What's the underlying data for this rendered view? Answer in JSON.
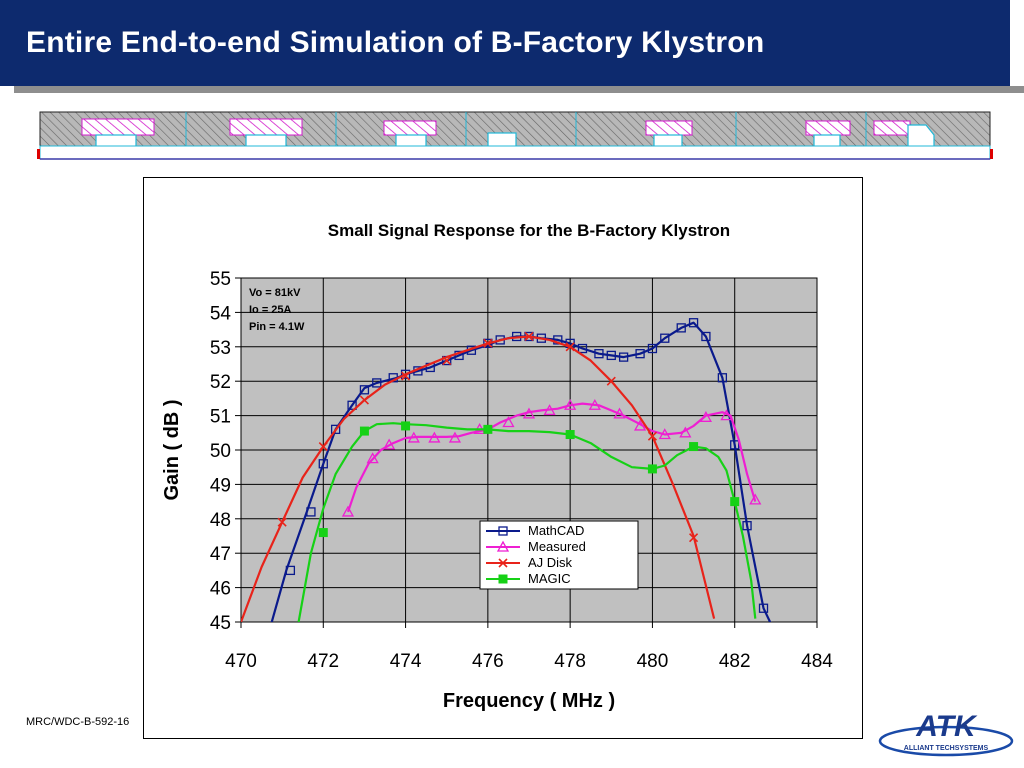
{
  "slide": {
    "title": "Entire End-to-end Simulation of B-Factory Klystron",
    "footer": "MRC/WDC-B-592-16",
    "logo_text": "ATK",
    "logo_subtext": "ALLIANT TECHSYSTEMS",
    "colors": {
      "title_bar": "#0d2a6e",
      "plot_bg": "#c0c0c0"
    }
  },
  "chart_data": {
    "type": "line",
    "title": "Small Signal Response for the B-Factory Klystron",
    "xlabel": "Frequency ( MHz )",
    "ylabel": "Gain ( dB )",
    "xlim": [
      470,
      484
    ],
    "ylim": [
      45,
      55
    ],
    "xticks": [
      470,
      472,
      474,
      476,
      478,
      480,
      482,
      484
    ],
    "yticks": [
      45,
      46,
      47,
      48,
      49,
      50,
      51,
      52,
      53,
      54,
      55
    ],
    "grid": true,
    "legend_position": "lower-center",
    "annotations": [
      "Vo  = 81kV",
      "Io    = 25A",
      "Pin = 4.1W"
    ],
    "series": [
      {
        "name": "MathCAD",
        "color": "#0a1a8c",
        "marker": "square",
        "x": [
          470.7,
          471.1,
          471.6,
          472.0,
          472.3,
          472.7,
          473.0,
          473.3,
          473.8,
          474.0,
          474.3,
          474.6,
          475.0,
          475.3,
          475.6,
          476.0,
          476.3,
          476.7,
          477.0,
          477.3,
          477.7,
          478.0,
          478.3,
          478.7,
          479.0,
          479.3,
          479.7,
          480.0,
          480.3,
          480.7,
          481.0,
          481.3,
          481.7,
          482.0,
          482.3,
          482.7,
          482.9
        ],
        "y": [
          44.8,
          46.5,
          48.2,
          49.6,
          50.6,
          51.3,
          51.8,
          51.95,
          52.1,
          52.2,
          52.3,
          52.4,
          52.6,
          52.75,
          52.9,
          53.05,
          53.2,
          53.3,
          53.3,
          53.25,
          53.2,
          53.1,
          52.95,
          52.8,
          52.75,
          52.7,
          52.8,
          52.95,
          53.25,
          53.55,
          53.7,
          53.3,
          52.1,
          50.15,
          47.8,
          45.4,
          44.9
        ],
        "marker_x": [
          471.2,
          471.7,
          472.0,
          472.3,
          472.7,
          473.0,
          473.3,
          473.7,
          474.0,
          474.3,
          474.6,
          475.0,
          475.3,
          475.6,
          476.0,
          476.3,
          476.7,
          477.0,
          477.3,
          477.7,
          478.0,
          478.3,
          478.7,
          479.0,
          479.3,
          479.7,
          480.0,
          480.3,
          480.7,
          481.0,
          481.3,
          481.7,
          482.0,
          482.3,
          482.7
        ],
        "marker_y": [
          46.5,
          48.2,
          49.6,
          50.6,
          51.3,
          51.75,
          51.95,
          52.1,
          52.2,
          52.3,
          52.4,
          52.6,
          52.75,
          52.9,
          53.1,
          53.2,
          53.3,
          53.3,
          53.25,
          53.2,
          53.1,
          52.95,
          52.8,
          52.75,
          52.7,
          52.8,
          52.95,
          53.25,
          53.55,
          53.7,
          53.3,
          52.1,
          50.15,
          47.8,
          45.4
        ]
      },
      {
        "name": "Measured",
        "color": "#ee1fd2",
        "marker": "triangle",
        "x": [
          472.6,
          472.8,
          473.1,
          473.4,
          473.7,
          474.0,
          474.3,
          474.6,
          475.0,
          475.3,
          475.6,
          476.0,
          476.3,
          476.7,
          477.0,
          477.3,
          477.7,
          478.0,
          478.3,
          478.7,
          479.0,
          479.3,
          479.7,
          480.0,
          480.3,
          480.7,
          481.0,
          481.3,
          481.7,
          481.9,
          482.1,
          482.3,
          482.5
        ],
        "y": [
          48.2,
          48.9,
          49.6,
          50.0,
          50.2,
          50.35,
          50.38,
          50.38,
          50.38,
          50.4,
          50.5,
          50.6,
          50.8,
          51.0,
          51.1,
          51.15,
          51.2,
          51.3,
          51.35,
          51.3,
          51.15,
          51.0,
          50.75,
          50.55,
          50.45,
          50.5,
          50.7,
          51.0,
          51.1,
          51.0,
          50.3,
          49.3,
          48.5
        ],
        "marker_x": [
          472.6,
          473.2,
          473.6,
          474.2,
          474.7,
          475.2,
          475.8,
          476.5,
          477.0,
          477.5,
          478.0,
          478.6,
          479.2,
          479.7,
          480.3,
          480.8,
          481.3,
          481.8,
          482.5
        ],
        "marker_y": [
          48.2,
          49.75,
          50.15,
          50.35,
          50.35,
          50.35,
          50.6,
          50.8,
          51.05,
          51.15,
          51.3,
          51.3,
          51.05,
          50.7,
          50.45,
          50.5,
          50.95,
          51.0,
          48.55
        ]
      },
      {
        "name": "AJ Disk",
        "color": "#e8231a",
        "marker": "x",
        "x": [
          470.0,
          470.5,
          471.0,
          471.5,
          472.0,
          472.5,
          473.0,
          473.5,
          474.0,
          474.5,
          475.0,
          475.5,
          476.0,
          476.5,
          477.0,
          477.5,
          478.0,
          478.5,
          479.0,
          479.5,
          480.0,
          480.5,
          481.0,
          481.5
        ],
        "y": [
          45.0,
          46.6,
          47.9,
          49.2,
          50.1,
          50.9,
          51.45,
          51.9,
          52.2,
          52.45,
          52.7,
          52.9,
          53.1,
          53.25,
          53.3,
          53.2,
          53.0,
          52.6,
          52.0,
          51.3,
          50.4,
          49.0,
          47.5,
          45.1
        ],
        "marker_x": [
          471.0,
          472.0,
          473.0,
          474.0,
          475.0,
          476.0,
          477.0,
          478.0,
          479.0,
          480.0,
          481.0
        ],
        "marker_y": [
          47.9,
          50.1,
          51.45,
          52.15,
          52.6,
          53.1,
          53.3,
          53.0,
          52.0,
          50.4,
          47.45
        ]
      },
      {
        "name": "MAGIC",
        "color": "#16d116",
        "marker": "filled-square",
        "x": [
          471.4,
          471.7,
          472.0,
          472.3,
          472.7,
          473.0,
          473.3,
          473.7,
          474.0,
          474.5,
          475.0,
          475.5,
          476.0,
          476.5,
          477.0,
          477.5,
          478.0,
          478.5,
          479.0,
          479.5,
          480.0,
          480.3,
          480.6,
          481.0,
          481.3,
          481.6,
          481.8,
          482.0,
          482.2,
          482.4,
          482.5
        ],
        "y": [
          45.0,
          47.0,
          48.3,
          49.3,
          50.1,
          50.55,
          50.75,
          50.78,
          50.75,
          50.72,
          50.65,
          50.6,
          50.6,
          50.55,
          50.55,
          50.52,
          50.45,
          50.2,
          49.8,
          49.5,
          49.45,
          49.55,
          49.85,
          50.1,
          50.05,
          49.8,
          49.4,
          48.5,
          47.5,
          46.2,
          45.1
        ],
        "marker_x": [
          472.0,
          473.0,
          474.0,
          476.0,
          478.0,
          480.0,
          481.0,
          482.0
        ],
        "marker_y": [
          47.6,
          50.55,
          50.7,
          50.6,
          50.45,
          49.45,
          50.1,
          48.5
        ]
      }
    ]
  }
}
